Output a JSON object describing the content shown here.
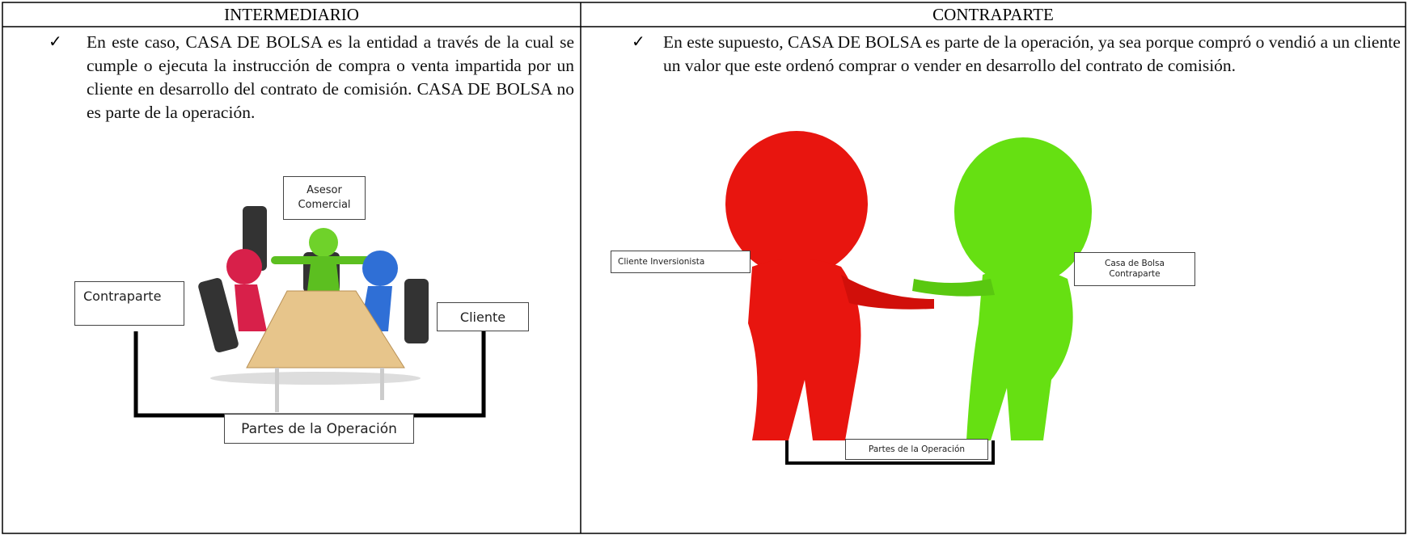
{
  "columns": [
    {
      "header": "INTERMEDIARIO",
      "bullet": "✓",
      "text": "En este caso, CASA DE BOLSA es la entidad a través de la cual se cumple o ejecuta la instrucción de compra o venta impartida por un cliente en desarrollo del contrato de comisión. CASA DE BOLSA no es parte de la operación.",
      "labels": {
        "advisor": [
          "Asesor",
          "Comercial"
        ],
        "counterparty": "Contraparte",
        "client": "Cliente",
        "parties": "Partes de la Operación"
      }
    },
    {
      "header": "CONTRAPARTE",
      "bullet": "✓",
      "text": "En este supuesto, CASA DE BOLSA es parte de la operación, ya sea porque compró o vendió a un cliente un valor que este ordenó comprar o vender en desarrollo del contrato de comisión.",
      "labels": {
        "client": "Cliente Inversionista",
        "broker": [
          "Casa de Bolsa",
          "Contraparte"
        ],
        "parties": "Partes de la Operación"
      }
    }
  ]
}
